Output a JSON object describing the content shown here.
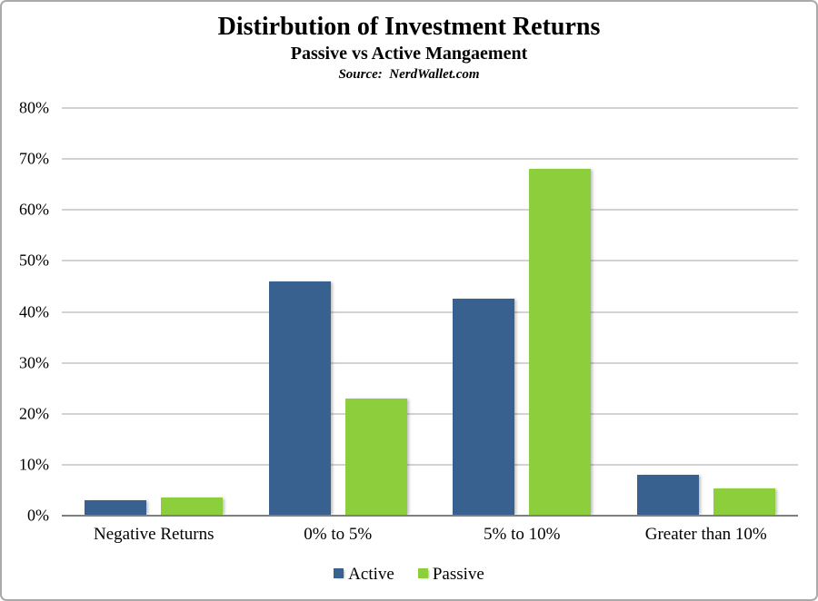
{
  "chart_data": {
    "type": "bar",
    "title": "Distirbution of Investment Returns",
    "subtitle": "Passive vs Active Mangaement",
    "source": "Source:  NerdWallet.com",
    "categories": [
      "Negative Returns",
      "0% to 5%",
      "5% to 10%",
      "Greater than 10%"
    ],
    "series": [
      {
        "name": "Active",
        "color": "#38618F",
        "values": [
          3,
          46,
          42.5,
          8
        ]
      },
      {
        "name": "Passive",
        "color": "#8DCE3C",
        "values": [
          3.5,
          23,
          68,
          5.3
        ]
      }
    ],
    "ylabel": "",
    "xlabel": "",
    "ylim": [
      0,
      80
    ],
    "ytick_step": 10,
    "ytick_labels": [
      "0%",
      "10%",
      "20%",
      "30%",
      "40%",
      "50%",
      "60%",
      "70%",
      "80%"
    ],
    "grid": true,
    "legend_position": "bottom",
    "colors": {
      "gridline": "#a6a6a6",
      "axis_line": "#7f7f7f",
      "frame_border": "#aaaaaa",
      "text": "#000000"
    }
  }
}
